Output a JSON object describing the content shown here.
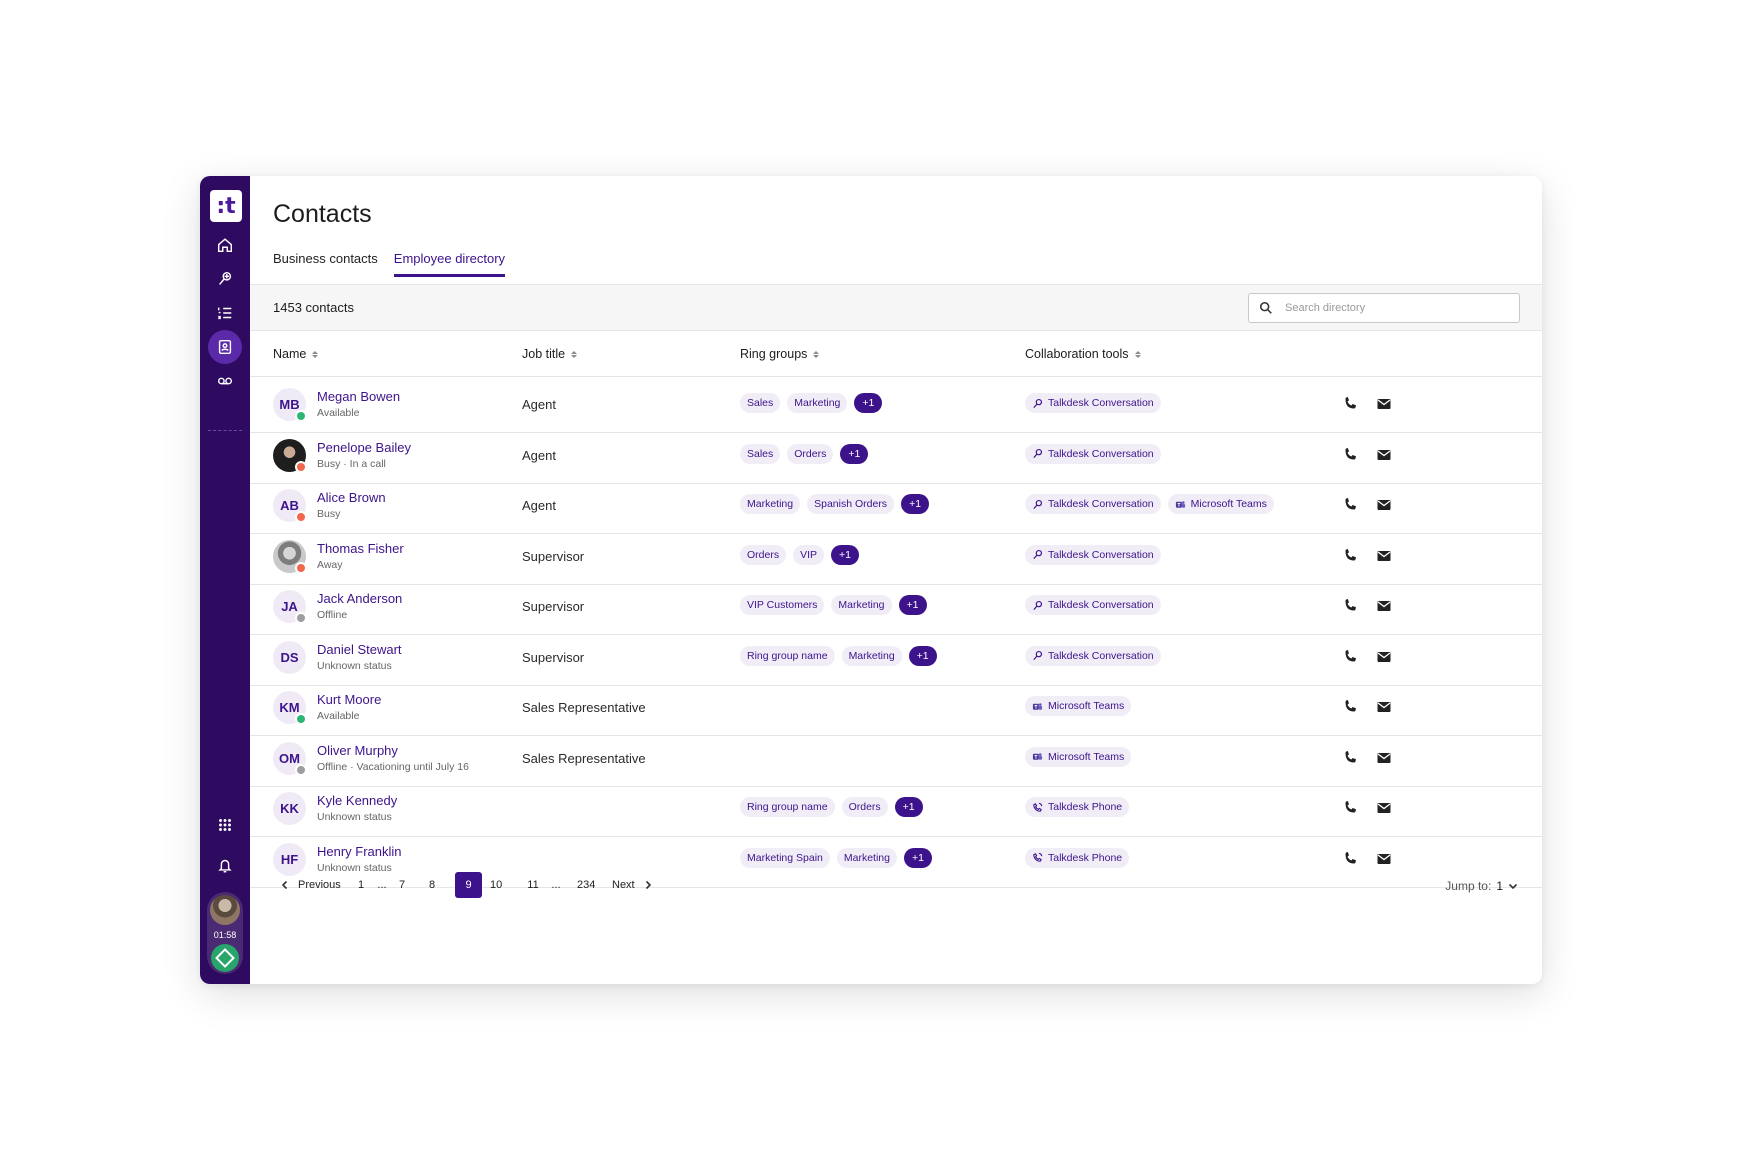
{
  "app": {
    "logo": ":t"
  },
  "page": {
    "title": "Contacts"
  },
  "tabs": [
    {
      "label": "Business contacts"
    },
    {
      "label": "Employee directory"
    }
  ],
  "toolbar": {
    "count": "1453 contacts",
    "search_placeholder": "Search directory"
  },
  "columns": {
    "name": "Name",
    "job": "Job title",
    "ring": "Ring groups",
    "collab": "Collaboration tools"
  },
  "sidebar": {
    "timer": "01:58"
  },
  "colors": {
    "brand": "#2f0a61",
    "accent": "#3d138b",
    "available": "#2bb673",
    "busy": "#f2674b",
    "offline": "#9e9e9e"
  },
  "rows": [
    {
      "initials": "MB",
      "name": "Megan Bowen",
      "status": "Available",
      "presence": "available",
      "job": "Agent",
      "ring": [
        "Sales",
        "Marketing"
      ],
      "ring_more": "+1",
      "collab": [
        {
          "label": "Talkdesk Conversation",
          "icon": "talkdesk-conversation-icon"
        }
      ]
    },
    {
      "initials": "",
      "photo": "photo1",
      "name": "Penelope Bailey",
      "status": "Busy · In a call",
      "presence": "busy",
      "job": "Agent",
      "ring": [
        "Sales",
        "Orders"
      ],
      "ring_more": "+1",
      "collab": [
        {
          "label": "Talkdesk Conversation",
          "icon": "talkdesk-conversation-icon"
        }
      ]
    },
    {
      "initials": "AB",
      "name": "Alice Brown",
      "status": "Busy",
      "presence": "busy",
      "job": "Agent",
      "ring": [
        "Marketing",
        "Spanish Orders"
      ],
      "ring_more": "+1",
      "collab": [
        {
          "label": "Talkdesk Conversation",
          "icon": "talkdesk-conversation-icon"
        },
        {
          "label": "Microsoft Teams",
          "icon": "microsoft-teams-icon"
        }
      ]
    },
    {
      "initials": "",
      "photo": "photo2",
      "name": "Thomas Fisher",
      "status": "Away",
      "presence": "away",
      "job": "Supervisor",
      "ring": [
        "Orders",
        "VIP"
      ],
      "ring_more": "+1",
      "collab": [
        {
          "label": "Talkdesk Conversation",
          "icon": "talkdesk-conversation-icon"
        }
      ]
    },
    {
      "initials": "JA",
      "name": "Jack Anderson",
      "status": "Offline",
      "presence": "offline",
      "job": "Supervisor",
      "ring": [
        "VIP Customers",
        "Marketing"
      ],
      "ring_more": "+1",
      "collab": [
        {
          "label": "Talkdesk Conversation",
          "icon": "talkdesk-conversation-icon"
        }
      ]
    },
    {
      "initials": "DS",
      "name": "Daniel Stewart",
      "status": "Unknown status",
      "presence": "unknown",
      "job": "Supervisor",
      "ring": [
        "Ring group name",
        "Marketing"
      ],
      "ring_more": "+1",
      "collab": [
        {
          "label": "Talkdesk Conversation",
          "icon": "talkdesk-conversation-icon"
        }
      ]
    },
    {
      "initials": "KM",
      "name": "Kurt Moore",
      "status": "Available",
      "presence": "available",
      "job": "Sales Representative",
      "ring": [],
      "ring_more": "",
      "collab": [
        {
          "label": "Microsoft Teams",
          "icon": "microsoft-teams-icon"
        }
      ]
    },
    {
      "initials": "OM",
      "name": "Oliver Murphy",
      "status": "Offline · Vacationing until July 16",
      "presence": "offline",
      "job": "Sales Representative",
      "ring": [],
      "ring_more": "",
      "collab": [
        {
          "label": "Microsoft Teams",
          "icon": "microsoft-teams-icon"
        }
      ]
    },
    {
      "initials": "KK",
      "name": "Kyle Kennedy",
      "status": "Unknown status",
      "presence": "unknown",
      "job": "",
      "ring": [
        "Ring group name",
        "Orders"
      ],
      "ring_more": "+1",
      "collab": [
        {
          "label": "Talkdesk Phone",
          "icon": "talkdesk-phone-icon"
        }
      ]
    },
    {
      "initials": "HF",
      "name": "Henry Franklin",
      "status": "Unknown status",
      "presence": "unknown",
      "job": "",
      "ring": [
        "Marketing Spain",
        "Marketing"
      ],
      "ring_more": "+1",
      "collab": [
        {
          "label": "Talkdesk Phone",
          "icon": "talkdesk-phone-icon"
        }
      ]
    }
  ],
  "pagination": {
    "previous": "Previous",
    "next": "Next",
    "pages": [
      "1",
      "...",
      "7",
      "8",
      "9",
      "10",
      "11",
      "...",
      "234"
    ],
    "current": "9",
    "jump_label": "Jump to:",
    "jump_value": "1"
  }
}
